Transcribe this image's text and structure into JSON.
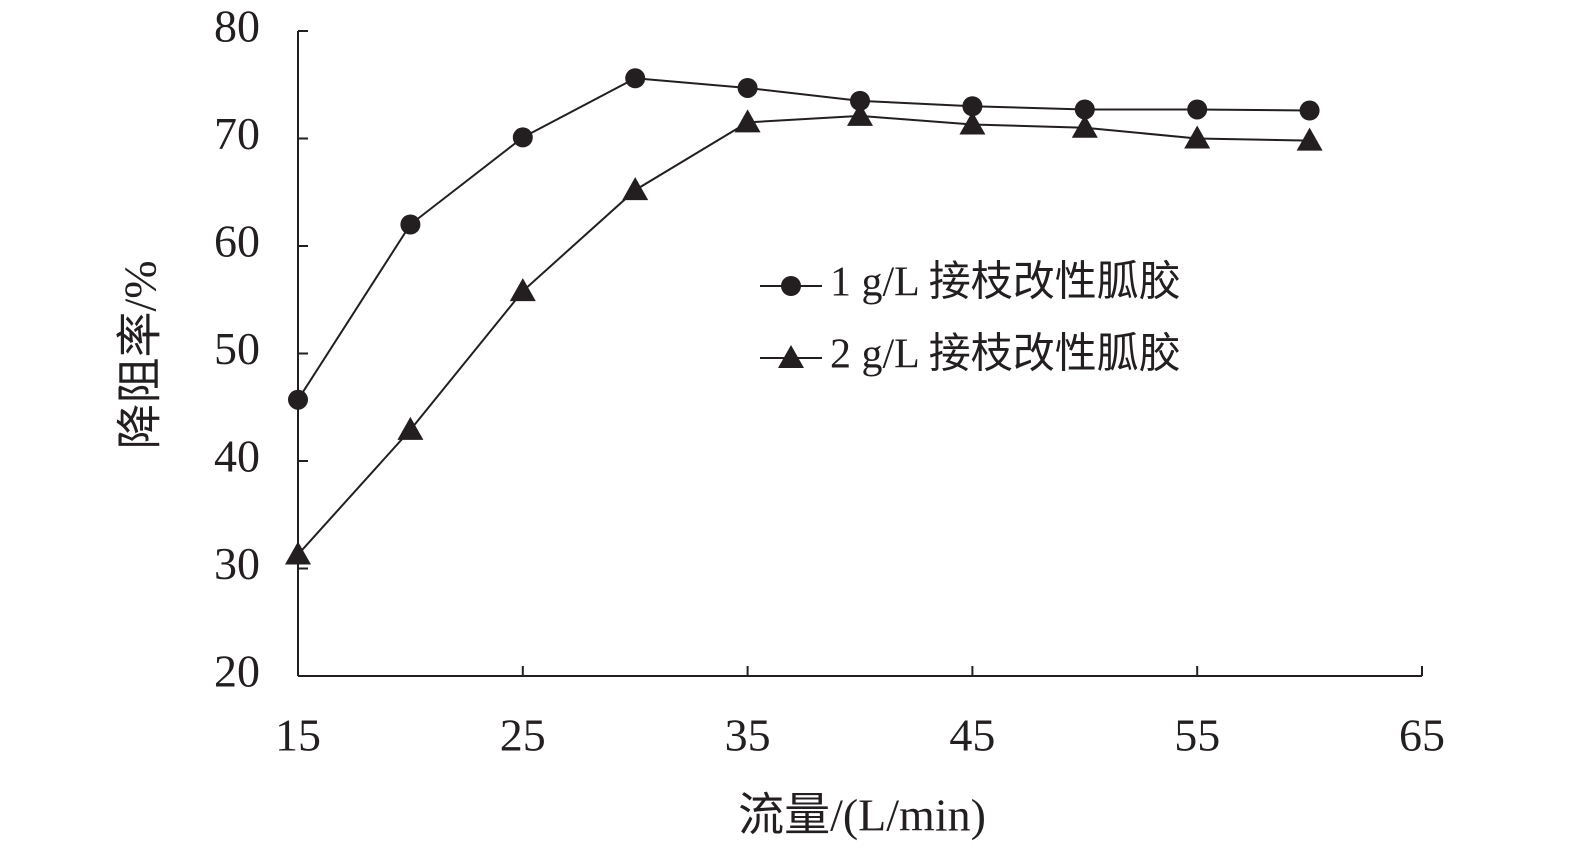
{
  "chart_data": {
    "type": "line",
    "x_label": "流量/(L/min)",
    "y_label": "降阻率/%",
    "x": [
      15,
      20,
      25,
      30,
      35,
      40,
      45,
      50,
      55,
      60
    ],
    "series": [
      {
        "name": "1 g/L 接枝改性胍胶",
        "color": "#231f20",
        "marker": "circle",
        "values": [
          45.7,
          62.0,
          70.1,
          75.6,
          74.7,
          73.5,
          73.0,
          72.7,
          72.7,
          72.6
        ]
      },
      {
        "name": "2 g/L 接枝改性胍胶",
        "color": "#231f20",
        "marker": "triangle",
        "values": [
          31.3,
          42.9,
          55.8,
          65.2,
          71.5,
          72.1,
          71.3,
          71.0,
          70.0,
          69.8
        ]
      }
    ],
    "xlim": [
      15,
      65
    ],
    "xticks": [
      15,
      25,
      35,
      45,
      55,
      65
    ],
    "ylim": [
      20,
      80
    ],
    "yticks": [
      20,
      30,
      40,
      50,
      60,
      70,
      80
    ],
    "grid": false
  }
}
